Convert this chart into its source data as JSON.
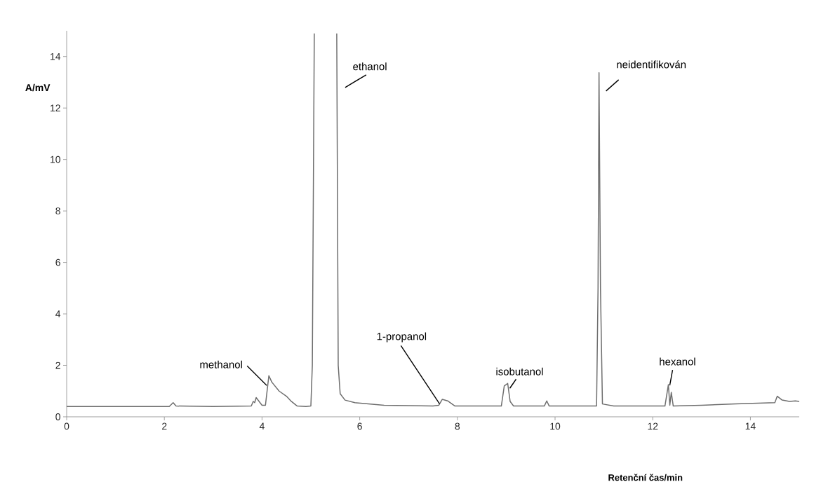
{
  "chart_data": {
    "type": "line",
    "xlabel": "Retenční čas/min",
    "ylabel": "A/mV",
    "xlim": [
      0,
      15
    ],
    "ylim": [
      0,
      15
    ],
    "xticks": [
      0,
      2,
      4,
      6,
      8,
      10,
      12,
      14
    ],
    "yticks": [
      0,
      2,
      4,
      6,
      8,
      10,
      12,
      14
    ],
    "grid": false,
    "marker": "none",
    "line_style": "solid",
    "series": [
      {
        "color": "#6e6e6e",
        "x": [
          0,
          1.0,
          2.1,
          2.18,
          2.24,
          3.0,
          3.78,
          3.82,
          3.85,
          3.88,
          3.94,
          4.0,
          4.07,
          4.14,
          4.2,
          4.35,
          4.5,
          4.6,
          4.72,
          4.9,
          5.0,
          5.03,
          5.07,
          5.3,
          5.53,
          5.56,
          5.6,
          5.7,
          5.9,
          6.5,
          7.5,
          7.62,
          7.69,
          7.8,
          7.95,
          8.9,
          8.96,
          9.03,
          9.08,
          9.15,
          9.78,
          9.83,
          9.88,
          10.85,
          10.88,
          10.9,
          10.93,
          10.97,
          11.2,
          12.25,
          12.32,
          12.35,
          12.38,
          12.42,
          13.0,
          13.7,
          14.5,
          14.55,
          14.65,
          14.8,
          14.92,
          15.0
        ],
        "values": [
          0.4,
          0.4,
          0.4,
          0.55,
          0.42,
          0.4,
          0.42,
          0.6,
          0.55,
          0.75,
          0.6,
          0.45,
          0.45,
          1.6,
          1.35,
          1.0,
          0.8,
          0.6,
          0.42,
          0.4,
          0.42,
          2.0,
          14.9,
          null,
          14.9,
          2.0,
          0.9,
          0.65,
          0.55,
          0.45,
          0.42,
          0.45,
          0.68,
          0.62,
          0.42,
          0.42,
          1.2,
          1.3,
          0.6,
          0.42,
          0.42,
          0.62,
          0.42,
          0.42,
          5.0,
          13.37,
          5.0,
          0.5,
          0.42,
          0.42,
          1.25,
          0.45,
          0.95,
          0.42,
          0.45,
          0.5,
          0.55,
          0.8,
          0.65,
          0.6,
          0.62,
          0.6
        ]
      }
    ],
    "annotations": [
      {
        "text": "methanol",
        "x": 4.14,
        "y": 1.6
      },
      {
        "text": "ethanol",
        "x": 5.53,
        "y": 12.8
      },
      {
        "text": "neidentifikován",
        "x": 10.9,
        "y": 13.37
      },
      {
        "text": "1-propanol",
        "x": 7.62,
        "y": 0.45
      },
      {
        "text": "isobutanol",
        "x": 9.03,
        "y": 1.3
      },
      {
        "text": "hexanol",
        "x": 12.32,
        "y": 1.25
      }
    ]
  }
}
